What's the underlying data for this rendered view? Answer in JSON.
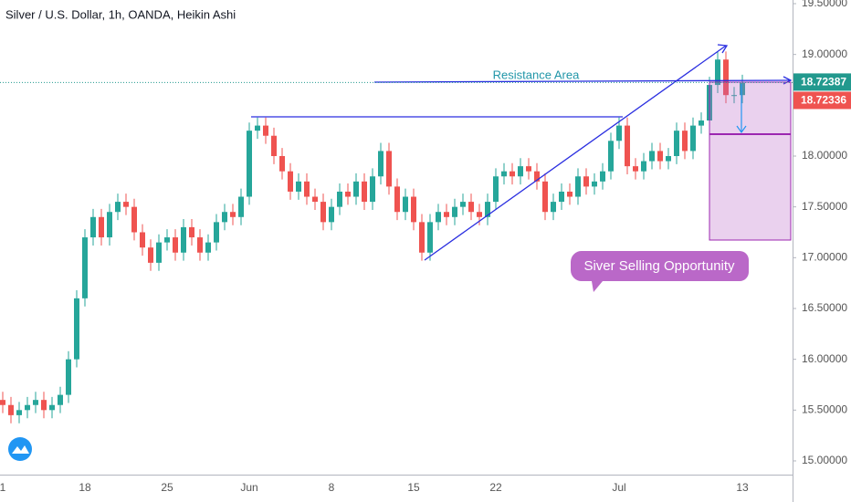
{
  "chart_data": {
    "type": "candlestick",
    "title": "Silver / U.S. Dollar, 1h, OANDA, Heikin Ashi",
    "categories": [
      "1",
      null,
      null,
      null,
      null,
      null,
      null,
      null,
      null,
      null,
      "18",
      null,
      null,
      null,
      null,
      null,
      null,
      null,
      null,
      null,
      "25",
      null,
      null,
      null,
      null,
      null,
      null,
      null,
      null,
      null,
      "Jun",
      null,
      null,
      null,
      null,
      null,
      null,
      null,
      null,
      null,
      "8",
      null,
      null,
      null,
      null,
      null,
      null,
      null,
      null,
      null,
      "15",
      null,
      null,
      null,
      null,
      null,
      null,
      null,
      null,
      null,
      "22",
      null,
      null,
      null,
      null,
      null,
      null,
      null,
      null,
      null,
      null,
      null,
      null,
      null,
      null,
      "Jul",
      null,
      null,
      null,
      null,
      null,
      null,
      null,
      null,
      null,
      null,
      null,
      null,
      null,
      null,
      "13"
    ],
    "open": [
      15.6,
      15.55,
      15.45,
      15.5,
      15.55,
      15.6,
      15.5,
      15.55,
      15.65,
      16.0,
      16.6,
      17.2,
      17.4,
      17.2,
      17.45,
      17.55,
      17.5,
      17.25,
      17.1,
      16.95,
      17.15,
      17.2,
      17.05,
      17.3,
      17.2,
      17.05,
      17.15,
      17.35,
      17.45,
      17.4,
      17.6,
      18.25,
      18.3,
      18.2,
      18.0,
      17.85,
      17.65,
      17.75,
      17.6,
      17.55,
      17.35,
      17.5,
      17.65,
      17.6,
      17.75,
      17.55,
      17.8,
      18.05,
      17.7,
      17.45,
      17.6,
      17.35,
      17.05,
      17.35,
      17.45,
      17.4,
      17.5,
      17.55,
      17.45,
      17.4,
      17.55,
      17.8,
      17.85,
      17.8,
      17.9,
      17.85,
      17.75,
      17.45,
      17.55,
      17.65,
      17.6,
      17.8,
      17.7,
      17.75,
      17.85,
      18.15,
      18.3,
      17.9,
      17.85,
      17.95,
      18.05,
      17.95,
      18.0,
      18.25,
      18.05,
      18.3,
      18.35,
      18.7,
      18.95,
      18.6,
      18.6
    ],
    "high": [
      15.68,
      15.63,
      15.58,
      15.63,
      15.68,
      15.68,
      15.63,
      15.73,
      16.08,
      16.68,
      17.28,
      17.48,
      17.48,
      17.53,
      17.63,
      17.63,
      17.58,
      17.33,
      17.18,
      17.23,
      17.28,
      17.28,
      17.38,
      17.38,
      17.28,
      17.23,
      17.43,
      17.53,
      17.53,
      17.68,
      18.33,
      18.38,
      18.38,
      18.28,
      18.08,
      17.93,
      17.83,
      17.83,
      17.68,
      17.63,
      17.58,
      17.73,
      17.73,
      17.83,
      17.83,
      17.88,
      18.13,
      18.13,
      17.78,
      17.68,
      17.68,
      17.43,
      17.43,
      17.53,
      17.53,
      17.58,
      17.63,
      17.63,
      17.53,
      17.63,
      17.88,
      17.93,
      17.93,
      17.98,
      17.98,
      17.93,
      17.83,
      17.63,
      17.73,
      17.73,
      17.88,
      17.88,
      17.83,
      17.93,
      18.23,
      18.38,
      18.38,
      17.98,
      18.03,
      18.13,
      18.13,
      18.08,
      18.33,
      18.33,
      18.38,
      18.43,
      18.78,
      19.03,
      19.03,
      18.68,
      18.8
    ],
    "low": [
      15.47,
      15.37,
      15.37,
      15.42,
      15.47,
      15.42,
      15.42,
      15.47,
      15.57,
      15.92,
      16.52,
      17.12,
      17.12,
      17.12,
      17.37,
      17.42,
      17.17,
      17.02,
      16.87,
      16.87,
      17.07,
      16.97,
      16.97,
      17.12,
      16.97,
      16.97,
      17.07,
      17.27,
      17.32,
      17.32,
      17.52,
      18.17,
      18.12,
      17.92,
      17.77,
      17.57,
      17.57,
      17.52,
      17.47,
      17.27,
      17.27,
      17.42,
      17.52,
      17.52,
      17.47,
      17.47,
      17.72,
      17.62,
      17.37,
      17.37,
      17.27,
      16.97,
      16.97,
      17.27,
      17.32,
      17.32,
      17.42,
      17.37,
      17.32,
      17.32,
      17.47,
      17.72,
      17.72,
      17.72,
      17.77,
      17.67,
      17.37,
      17.37,
      17.47,
      17.52,
      17.52,
      17.62,
      17.62,
      17.67,
      17.77,
      18.07,
      17.82,
      17.77,
      17.77,
      17.87,
      17.87,
      17.87,
      17.92,
      17.97,
      17.97,
      18.22,
      18.27,
      18.62,
      18.52,
      18.52,
      18.52
    ],
    "close": [
      15.55,
      15.45,
      15.5,
      15.55,
      15.6,
      15.5,
      15.55,
      15.65,
      16.0,
      16.6,
      17.2,
      17.4,
      17.2,
      17.45,
      17.55,
      17.5,
      17.25,
      17.1,
      16.95,
      17.15,
      17.2,
      17.05,
      17.3,
      17.2,
      17.05,
      17.15,
      17.35,
      17.45,
      17.4,
      17.6,
      18.25,
      18.3,
      18.2,
      18.0,
      17.85,
      17.65,
      17.75,
      17.6,
      17.55,
      17.35,
      17.5,
      17.65,
      17.6,
      17.75,
      17.55,
      17.8,
      18.05,
      17.7,
      17.45,
      17.6,
      17.35,
      17.05,
      17.35,
      17.45,
      17.4,
      17.5,
      17.55,
      17.45,
      17.4,
      17.55,
      17.8,
      17.85,
      17.8,
      17.9,
      17.85,
      17.75,
      17.45,
      17.55,
      17.65,
      17.6,
      17.8,
      17.7,
      17.75,
      17.85,
      18.15,
      18.3,
      17.9,
      17.85,
      17.95,
      18.05,
      17.95,
      18.0,
      18.25,
      18.05,
      18.3,
      18.35,
      18.7,
      18.95,
      18.6,
      18.6,
      18.72
    ],
    "up_color": "#26a69a",
    "down_color": "#ef5350",
    "ylim": [
      14.865,
      19.536
    ],
    "yticks": [
      {
        "value": 15.0,
        "label": "15.00000"
      },
      {
        "value": 15.5,
        "label": "15.50000"
      },
      {
        "value": 16.0,
        "label": "16.00000"
      },
      {
        "value": 16.5,
        "label": "16.50000"
      },
      {
        "value": 17.0,
        "label": "17.00000"
      },
      {
        "value": 17.5,
        "label": "17.50000"
      },
      {
        "value": 18.0,
        "label": "18.00000"
      },
      {
        "value": 18.5,
        "label": "18.50000"
      },
      {
        "value": 19.0,
        "label": "19.00000"
      },
      {
        "value": 19.5,
        "label": "19.50000"
      }
    ],
    "price_labels": [
      {
        "value": 18.72387,
        "label": "18.72387",
        "color": "#22998e"
      },
      {
        "value": 18.72336,
        "label": "18.72336",
        "color": "#ef5350"
      }
    ],
    "annotations": [
      "Resistance Area",
      "Siver Selling Opportunity"
    ]
  }
}
